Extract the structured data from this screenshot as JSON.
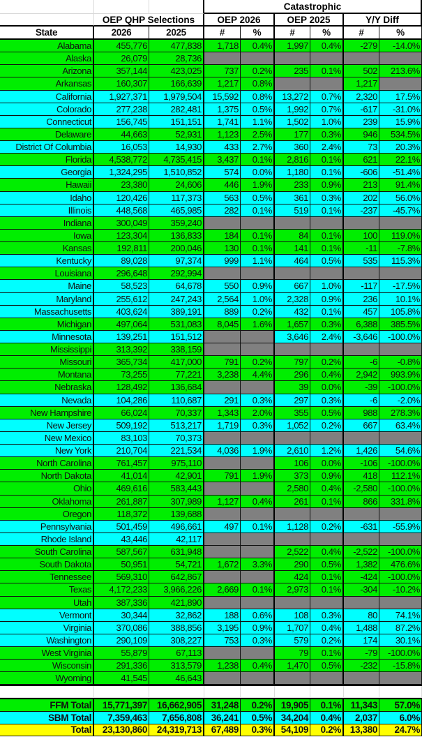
{
  "colors": {
    "green": "#00ee00",
    "cyan": "#00ffff",
    "gray": "#808080",
    "yellow": "#ffff00"
  },
  "header": {
    "group_catastrophic": "Catastrophic",
    "group_qhp": "OEP QHP Selections",
    "group_oep2026": "OEP 2026",
    "group_oep2025": "OEP 2025",
    "group_yoy": "Y/Y Diff",
    "columns": [
      "State",
      "2026",
      "2025",
      "#",
      "%",
      "#",
      "%",
      "#",
      "%"
    ]
  },
  "rows": [
    [
      "Alabama",
      "455,776",
      "477,838",
      "1,718",
      "0.4%",
      "1,997",
      "0.4%",
      "-279",
      "-14.0%",
      "green"
    ],
    [
      "Alaska",
      "26,079",
      "28,736",
      null,
      null,
      null,
      null,
      null,
      null,
      "green"
    ],
    [
      "Arizona",
      "357,144",
      "423,025",
      "737",
      "0.2%",
      "235",
      "0.1%",
      "502",
      "213.6%",
      "green"
    ],
    [
      "Arkansas",
      "160,307",
      "166,639",
      "1,217",
      "0.8%",
      null,
      null,
      "1,217",
      null,
      "green"
    ],
    [
      "California",
      "1,927,371",
      "1,979,504",
      "15,592",
      "0.8%",
      "13,272",
      "0.7%",
      "2,320",
      "17.5%",
      "cyan"
    ],
    [
      "Colorado",
      "277,238",
      "282,481",
      "1,375",
      "0.5%",
      "1,992",
      "0.7%",
      "-617",
      "-31.0%",
      "cyan"
    ],
    [
      "Connecticut",
      "156,745",
      "151,151",
      "1,741",
      "1.1%",
      "1,502",
      "1.0%",
      "239",
      "15.9%",
      "cyan"
    ],
    [
      "Delaware",
      "44,663",
      "52,931",
      "1,123",
      "2.5%",
      "177",
      "0.3%",
      "946",
      "534.5%",
      "green"
    ],
    [
      "District Of Columbia",
      "16,053",
      "14,930",
      "433",
      "2.7%",
      "360",
      "2.4%",
      "73",
      "20.3%",
      "cyan"
    ],
    [
      "Florida",
      "4,538,772",
      "4,735,415",
      "3,437",
      "0.1%",
      "2,816",
      "0.1%",
      "621",
      "22.1%",
      "green"
    ],
    [
      "Georgia",
      "1,324,295",
      "1,510,852",
      "574",
      "0.0%",
      "1,180",
      "0.1%",
      "-606",
      "-51.4%",
      "cyan"
    ],
    [
      "Hawaii",
      "23,380",
      "24,606",
      "446",
      "1.9%",
      "233",
      "0.9%",
      "213",
      "91.4%",
      "green"
    ],
    [
      "Idaho",
      "120,426",
      "117,373",
      "563",
      "0.5%",
      "361",
      "0.3%",
      "202",
      "56.0%",
      "cyan"
    ],
    [
      "Illinois",
      "448,568",
      "465,985",
      "282",
      "0.1%",
      "519",
      "0.1%",
      "-237",
      "-45.7%",
      "cyan"
    ],
    [
      "Indiana",
      "300,049",
      "359,240",
      null,
      null,
      null,
      null,
      null,
      null,
      "green"
    ],
    [
      "Iowa",
      "123,304",
      "136,833",
      "184",
      "0.1%",
      "84",
      "0.1%",
      "100",
      "119.0%",
      "green"
    ],
    [
      "Kansas",
      "192,811",
      "200,046",
      "130",
      "0.1%",
      "141",
      "0.1%",
      "-11",
      "-7.8%",
      "green"
    ],
    [
      "Kentucky",
      "89,028",
      "97,374",
      "999",
      "1.1%",
      "464",
      "0.5%",
      "535",
      "115.3%",
      "cyan"
    ],
    [
      "Louisiana",
      "296,648",
      "292,994",
      null,
      null,
      null,
      null,
      null,
      null,
      "green"
    ],
    [
      "Maine",
      "58,523",
      "64,678",
      "550",
      "0.9%",
      "667",
      "1.0%",
      "-117",
      "-17.5%",
      "cyan"
    ],
    [
      "Maryland",
      "255,612",
      "247,243",
      "2,564",
      "1.0%",
      "2,328",
      "0.9%",
      "236",
      "10.1%",
      "cyan"
    ],
    [
      "Massachusetts",
      "403,624",
      "389,191",
      "889",
      "0.2%",
      "432",
      "0.1%",
      "457",
      "105.8%",
      "cyan"
    ],
    [
      "Michigan",
      "497,064",
      "531,083",
      "8,045",
      "1.6%",
      "1,657",
      "0.3%",
      "6,388",
      "385.5%",
      "green"
    ],
    [
      "Minnesota",
      "139,251",
      "151,512",
      null,
      null,
      "3,646",
      "2.4%",
      "-3,646",
      "-100.0%",
      "cyan"
    ],
    [
      "Mississippi",
      "313,392",
      "338,159",
      null,
      null,
      null,
      null,
      null,
      null,
      "green"
    ],
    [
      "Missouri",
      "365,734",
      "417,000",
      "791",
      "0.2%",
      "797",
      "0.2%",
      "-6",
      "-0.8%",
      "green"
    ],
    [
      "Montana",
      "73,255",
      "77,221",
      "3,238",
      "4.4%",
      "296",
      "0.4%",
      "2,942",
      "993.9%",
      "green"
    ],
    [
      "Nebraska",
      "128,492",
      "136,684",
      null,
      null,
      "39",
      "0.0%",
      "-39",
      "-100.0%",
      "green"
    ],
    [
      "Nevada",
      "104,286",
      "110,687",
      "291",
      "0.3%",
      "297",
      "0.3%",
      "-6",
      "-2.0%",
      "cyan"
    ],
    [
      "New Hampshire",
      "66,024",
      "70,337",
      "1,343",
      "2.0%",
      "355",
      "0.5%",
      "988",
      "278.3%",
      "green"
    ],
    [
      "New Jersey",
      "509,192",
      "513,217",
      "1,719",
      "0.3%",
      "1,052",
      "0.2%",
      "667",
      "63.4%",
      "cyan"
    ],
    [
      "New Mexico",
      "83,103",
      "70,373",
      null,
      null,
      null,
      null,
      null,
      null,
      "cyan"
    ],
    [
      "New York",
      "210,704",
      "221,534",
      "4,036",
      "1.9%",
      "2,610",
      "1.2%",
      "1,426",
      "54.6%",
      "cyan"
    ],
    [
      "North Carolina",
      "761,457",
      "975,110",
      null,
      null,
      "106",
      "0.0%",
      "-106",
      "-100.0%",
      "green"
    ],
    [
      "North Dakota",
      "41,014",
      "42,901",
      "791",
      "1.9%",
      "373",
      "0.9%",
      "418",
      "112.1%",
      "green"
    ],
    [
      "Ohio",
      "469,616",
      "583,443",
      null,
      null,
      "2,580",
      "0.4%",
      "-2,580",
      "-100.0%",
      "green"
    ],
    [
      "Oklahoma",
      "261,887",
      "307,989",
      "1,127",
      "0.4%",
      "261",
      "0.1%",
      "866",
      "331.8%",
      "green"
    ],
    [
      "Oregon",
      "118,372",
      "139,688",
      null,
      null,
      null,
      null,
      null,
      null,
      "green"
    ],
    [
      "Pennsylvania",
      "501,459",
      "496,661",
      "497",
      "0.1%",
      "1,128",
      "0.2%",
      "-631",
      "-55.9%",
      "cyan"
    ],
    [
      "Rhode Island",
      "43,446",
      "42,117",
      null,
      null,
      null,
      null,
      null,
      null,
      "cyan"
    ],
    [
      "South Carolina",
      "587,567",
      "631,948",
      null,
      null,
      "2,522",
      "0.4%",
      "-2,522",
      "-100.0%",
      "green"
    ],
    [
      "South Dakota",
      "50,951",
      "54,721",
      "1,672",
      "3.3%",
      "290",
      "0.5%",
      "1,382",
      "476.6%",
      "green"
    ],
    [
      "Tennessee",
      "569,310",
      "642,867",
      null,
      null,
      "424",
      "0.1%",
      "-424",
      "-100.0%",
      "green"
    ],
    [
      "Texas",
      "4,172,233",
      "3,966,226",
      "2,669",
      "0.1%",
      "2,973",
      "0.1%",
      "-304",
      "-10.2%",
      "green"
    ],
    [
      "Utah",
      "387,336",
      "421,890",
      null,
      null,
      null,
      null,
      null,
      null,
      "green"
    ],
    [
      "Vermont",
      "30,344",
      "32,862",
      "188",
      "0.6%",
      "108",
      "0.3%",
      "80",
      "74.1%",
      "cyan"
    ],
    [
      "Virginia",
      "370,086",
      "388,856",
      "3,195",
      "0.9%",
      "1,707",
      "0.4%",
      "1,488",
      "87.2%",
      "cyan"
    ],
    [
      "Washington",
      "290,109",
      "308,227",
      "753",
      "0.3%",
      "579",
      "0.2%",
      "174",
      "30.1%",
      "cyan"
    ],
    [
      "West Virginia",
      "55,879",
      "67,113",
      null,
      null,
      "79",
      "0.1%",
      "-79",
      "-100.0%",
      "green"
    ],
    [
      "Wisconsin",
      "291,336",
      "313,579",
      "1,238",
      "0.4%",
      "1,470",
      "0.5%",
      "-232",
      "-15.8%",
      "green"
    ],
    [
      "Wyoming",
      "41,545",
      "46,643",
      null,
      null,
      null,
      null,
      null,
      null,
      "green"
    ]
  ],
  "totals": [
    [
      "FFM Total",
      "15,771,397",
      "16,662,905",
      "31,248",
      "0.2%",
      "19,905",
      "0.1%",
      "11,343",
      "57.0%",
      "green"
    ],
    [
      "SBM Total",
      "7,359,463",
      "7,656,808",
      "36,241",
      "0.5%",
      "34,204",
      "0.4%",
      "2,037",
      "6.0%",
      "cyan"
    ],
    [
      "Total",
      "23,130,860",
      "24,319,713",
      "67,489",
      "0.3%",
      "54,109",
      "0.2%",
      "13,380",
      "24.7%",
      "yellow"
    ]
  ]
}
